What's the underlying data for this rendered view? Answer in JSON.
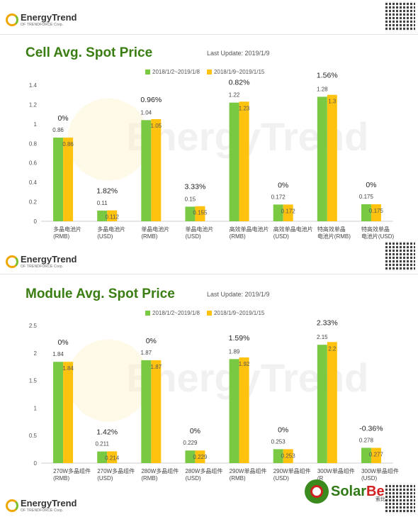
{
  "brand": {
    "name": "EnergyTrend",
    "sub": "OF TRENDFORCE Corp.",
    "watermark": "EnergyTrend"
  },
  "colors": {
    "series1": "#7ac943",
    "series2": "#ffc20e",
    "title": "#3a7d12",
    "axis": "#cfcfcf"
  },
  "solarbe": {
    "name_a": "Solar",
    "name_b": "Be",
    "sub": "索比光伏"
  },
  "chart_data": [
    {
      "type": "bar",
      "title": "Cell Avg. Spot Price",
      "update": "Last Update: 2019/1/9",
      "ylim": [
        0,
        1.4
      ],
      "yticks": [
        "0",
        "0.2",
        "0.4",
        "0.6",
        "0.8",
        "1",
        "1.2",
        "1.4"
      ],
      "categories": [
        [
          "多晶电池片",
          "(RMB)"
        ],
        [
          "多晶电池片",
          "(USD)"
        ],
        [
          "单晶电池片",
          "(RMB)"
        ],
        [
          "单晶电池片",
          "(USD)"
        ],
        [
          "高效单晶电池片",
          "(RMB)"
        ],
        [
          "高效单晶电池片",
          "(USD)"
        ],
        [
          "特高效单晶",
          "电池片(RMB)"
        ],
        [
          "特高效单晶",
          "电池片(USD)"
        ]
      ],
      "series": [
        {
          "name": "2018/1/2~2019/1/8",
          "values": [
            0.86,
            0.11,
            1.04,
            0.15,
            1.22,
            0.172,
            1.28,
            0.175
          ],
          "labels": [
            "0.86",
            "0.11",
            "1.04",
            "0.15",
            "1.22",
            "0.172",
            "1.28",
            "0.175"
          ]
        },
        {
          "name": "2018/1/9~2019/1/15",
          "values": [
            0.86,
            0.112,
            1.05,
            0.155,
            1.23,
            0.172,
            1.3,
            0.175
          ],
          "labels": [
            "0.86",
            "0.112",
            "1.05",
            "0.155",
            "1.23",
            "0.172",
            "1.3",
            "0.175"
          ]
        }
      ],
      "changes": [
        "0%",
        "1.82%",
        "0.96%",
        "3.33%",
        "0.82%",
        "0%",
        "1.56%",
        "0%"
      ]
    },
    {
      "type": "bar",
      "title": "Module Avg. Spot Price",
      "update": "Last Update: 2019/1/9",
      "ylim": [
        0,
        2.5
      ],
      "yticks": [
        "0",
        "0.5",
        "1",
        "1.5",
        "2",
        "2.5"
      ],
      "categories": [
        [
          "270W多晶组件",
          "(RMB)"
        ],
        [
          "270W多晶组件",
          "(USD)"
        ],
        [
          "280W多晶组件",
          "(RMB)"
        ],
        [
          "280W多晶组件",
          "(USD)"
        ],
        [
          "290W单晶组件",
          "(RMB)"
        ],
        [
          "290W单晶组件",
          "(USD)"
        ],
        [
          "300W单晶组件",
          "(R"
        ],
        [
          "300W单晶组件",
          "(USD)"
        ]
      ],
      "series": [
        {
          "name": "2018/1/2~2019/1/8",
          "values": [
            1.84,
            0.211,
            1.87,
            0.229,
            1.89,
            0.253,
            2.15,
            0.278
          ],
          "labels": [
            "1.84",
            "0.211",
            "1.87",
            "0.229",
            "1.89",
            "0.253",
            "2.15",
            "0.278"
          ]
        },
        {
          "name": "2018/1/9~2019/1/15",
          "values": [
            1.84,
            0.214,
            1.87,
            0.229,
            1.92,
            0.253,
            2.2,
            0.277
          ],
          "labels": [
            "1.84",
            "0.214",
            "1.87",
            "0.229",
            "1.92",
            "0.253",
            "2.2",
            "0.277"
          ]
        }
      ],
      "changes": [
        "0%",
        "1.42%",
        "0%",
        "0%",
        "1.59%",
        "0%",
        "2.33%",
        "-0.36%"
      ]
    }
  ]
}
